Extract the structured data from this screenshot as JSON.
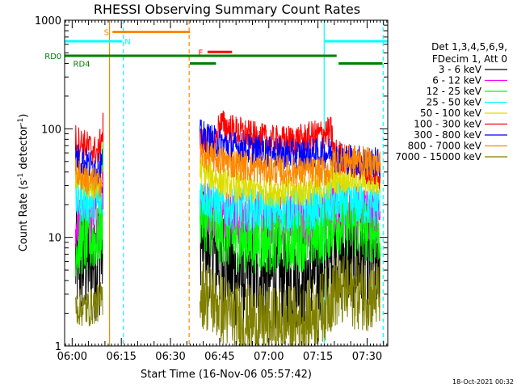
{
  "chart_data": {
    "type": "line",
    "title": "RHESSI Observing Summary Count Rates",
    "xlabel": "Start Time (16-Nov-06 05:57:42)",
    "ylabel_main": "Count Rate (s",
    "ylabel_sup1": "-1",
    "ylabel_mid": " detector",
    "ylabel_sup2": "-1",
    "ylabel_end": ")",
    "y_scale": "log",
    "ylim": [
      1,
      1000
    ],
    "xlim_minutes": [
      -2.3,
      96.3
    ],
    "x_unit": "minutes after 06:00",
    "x_ticks": [
      {
        "m": 0,
        "label": "06:00"
      },
      {
        "m": 15,
        "label": "06:15"
      },
      {
        "m": 30,
        "label": "06:30"
      },
      {
        "m": 45,
        "label": "06:45"
      },
      {
        "m": 60,
        "label": "07:00"
      },
      {
        "m": 75,
        "label": "07:15"
      },
      {
        "m": 90,
        "label": "07:30"
      }
    ],
    "y_ticks": [
      {
        "v": 1,
        "label": "1"
      },
      {
        "v": 10,
        "label": "10"
      },
      {
        "v": 100,
        "label": "100"
      },
      {
        "v": 1000,
        "label": "1000"
      }
    ],
    "legend_header": [
      "Det 1,3,4,5,6,9,",
      "FDecim 1, Att 0"
    ],
    "legend_placement": "right",
    "series": [
      {
        "name": "3 - 6 keV",
        "color": "#000000",
        "seg1": [
          [
            1,
            6,
            3.4
          ],
          [
            5,
            6.5,
            3.8
          ],
          [
            8,
            7,
            4.2
          ],
          [
            9.3,
            9,
            4.2
          ]
        ],
        "seg2": [
          [
            39,
            10,
            2.8
          ],
          [
            45,
            6.5,
            3.2
          ],
          [
            50,
            4.6,
            3.2
          ],
          [
            60,
            4.3,
            3
          ],
          [
            70,
            4.3,
            3
          ],
          [
            75,
            4.8,
            3
          ],
          [
            78,
            5.8,
            3
          ],
          [
            80,
            7.5,
            3
          ],
          [
            84,
            7,
            3.2
          ],
          [
            90,
            6.5,
            3.2
          ],
          [
            94,
            6.2,
            3.2
          ]
        ]
      },
      {
        "name": "6 - 12 keV",
        "color": "#ff00ff",
        "seg1": [
          [
            1,
            13,
            1.8
          ],
          [
            5,
            14,
            1.8
          ],
          [
            8,
            15,
            1.8
          ],
          [
            9.3,
            17,
            1.8
          ]
        ],
        "seg2": [
          [
            39,
            21,
            1.8
          ],
          [
            45,
            16.5,
            1.8
          ],
          [
            50,
            15,
            1.8
          ],
          [
            60,
            14.5,
            1.8
          ],
          [
            70,
            14.5,
            1.8
          ],
          [
            75,
            15,
            1.8
          ],
          [
            78,
            16,
            1.8
          ],
          [
            80,
            18,
            1.8
          ],
          [
            86,
            17,
            1.8
          ],
          [
            94,
            16,
            1.8
          ]
        ]
      },
      {
        "name": "12 - 25 keV",
        "color": "#00ff00",
        "seg1": [
          [
            1,
            8.5,
            2
          ],
          [
            5,
            9,
            2
          ],
          [
            8,
            10,
            2
          ],
          [
            9.3,
            13,
            2
          ]
        ],
        "seg2": [
          [
            39,
            16,
            2
          ],
          [
            45,
            11,
            2
          ],
          [
            50,
            9.5,
            2
          ],
          [
            60,
            9,
            2
          ],
          [
            70,
            9.5,
            2
          ],
          [
            75,
            10.5,
            2
          ],
          [
            78,
            12,
            2
          ],
          [
            80,
            14,
            2
          ],
          [
            86,
            12.5,
            2
          ],
          [
            94,
            11,
            2
          ]
        ]
      },
      {
        "name": "25 - 50 keV",
        "color": "#00ffff",
        "seg1": [
          [
            1,
            22,
            1.6
          ],
          [
            5,
            21,
            1.6
          ],
          [
            8,
            21,
            1.6
          ],
          [
            9.3,
            23,
            1.6
          ]
        ],
        "seg2": [
          [
            39,
            25,
            1.6
          ],
          [
            45,
            19.5,
            1.6
          ],
          [
            50,
            18.5,
            1.6
          ],
          [
            60,
            18,
            1.6
          ],
          [
            70,
            18,
            1.6
          ],
          [
            75,
            18.5,
            1.6
          ],
          [
            78,
            19.5,
            1.6
          ],
          [
            80,
            21,
            1.6
          ],
          [
            86,
            20.5,
            1.6
          ],
          [
            94,
            19.5,
            1.6
          ]
        ]
      },
      {
        "name": "50 - 100 keV",
        "color": "#dddd00",
        "seg1": [
          [
            1,
            38,
            1.4
          ],
          [
            5,
            30,
            1.4
          ],
          [
            8,
            29,
            1.4
          ],
          [
            9.3,
            31,
            1.4
          ]
        ],
        "seg2": [
          [
            39,
            43,
            1.4
          ],
          [
            45,
            33,
            1.4
          ],
          [
            50,
            29,
            1.4
          ],
          [
            60,
            27,
            1.4
          ],
          [
            70,
            26.5,
            1.4
          ],
          [
            75,
            27.5,
            1.4
          ],
          [
            78,
            30,
            1.4
          ],
          [
            80,
            35,
            1.4
          ],
          [
            86,
            35,
            1.4
          ],
          [
            94,
            32,
            1.4
          ]
        ]
      },
      {
        "name": "100 - 300 keV",
        "color": "#ff0000",
        "seg1": [
          [
            1,
            80,
            1.4
          ],
          [
            5,
            68,
            1.4
          ],
          [
            8,
            60,
            1.4
          ],
          [
            9.3,
            95,
            1.4
          ]
        ],
        "seg2": [
          [
            39,
            78,
            1.4
          ],
          [
            43,
            64,
            1.4
          ],
          [
            45,
            112,
            1.4
          ],
          [
            50,
            95,
            1.4
          ],
          [
            55,
            85,
            1.4
          ],
          [
            60,
            78,
            1.4
          ],
          [
            65,
            77,
            1.4
          ],
          [
            70,
            80,
            1.4
          ],
          [
            75,
            88,
            1.4
          ],
          [
            79,
            94,
            1.4
          ],
          [
            80,
            60,
            1.4
          ],
          [
            86,
            48,
            1.4
          ],
          [
            90,
            43,
            1.4
          ],
          [
            94,
            38,
            1.4
          ]
        ]
      },
      {
        "name": "300 - 800 keV",
        "color": "#0000ff",
        "seg1": [
          [
            1,
            55,
            1.4
          ],
          [
            5,
            47,
            1.4
          ],
          [
            8,
            43,
            1.4
          ],
          [
            9.3,
            50,
            1.4
          ]
        ],
        "seg2": [
          [
            39,
            88,
            1.4
          ],
          [
            45,
            74,
            1.4
          ],
          [
            50,
            68,
            1.4
          ],
          [
            60,
            61,
            1.4
          ],
          [
            70,
            58,
            1.4
          ],
          [
            75,
            59,
            1.4
          ],
          [
            79,
            60,
            1.4
          ],
          [
            80,
            55,
            1.4
          ],
          [
            86,
            52,
            1.4
          ],
          [
            94,
            48,
            1.4
          ]
        ]
      },
      {
        "name": "800 - 7000 keV",
        "color": "#ff8800",
        "seg1": [
          [
            1,
            40,
            1.4
          ],
          [
            5,
            33,
            1.4
          ],
          [
            8,
            31,
            1.4
          ],
          [
            9.3,
            34,
            1.4
          ]
        ],
        "seg2": [
          [
            39,
            58,
            1.4
          ],
          [
            45,
            52,
            1.4
          ],
          [
            50,
            47,
            1.4
          ],
          [
            60,
            42,
            1.4
          ],
          [
            70,
            40,
            1.4
          ],
          [
            75,
            40,
            1.4
          ],
          [
            79,
            41,
            1.4
          ],
          [
            80,
            52,
            1.4
          ],
          [
            86,
            52,
            1.4
          ],
          [
            94,
            46,
            1.4
          ]
        ]
      },
      {
        "name": "7000 - 15000 keV",
        "color": "#808000",
        "seg1": [
          [
            1,
            2.3,
            1.5
          ],
          [
            5,
            2.2,
            1.5
          ],
          [
            8,
            2.5,
            1.5
          ],
          [
            9.3,
            2.8,
            1.5
          ]
        ],
        "seg2": [
          [
            39,
            3.3,
            2.2
          ],
          [
            45,
            2.3,
            2.2
          ],
          [
            50,
            1.8,
            2.2
          ],
          [
            60,
            1.6,
            2.2
          ],
          [
            70,
            1.7,
            2.2
          ],
          [
            75,
            2.1,
            2.2
          ],
          [
            78,
            2.6,
            2.2
          ],
          [
            80,
            3.2,
            2.2
          ],
          [
            86,
            3.1,
            2.2
          ],
          [
            94,
            2.9,
            2.2
          ]
        ]
      }
    ],
    "flags": [
      {
        "label": "S",
        "color": "#ff8800",
        "y": 780,
        "segments": [
          [
            12.3,
            35.9
          ]
        ],
        "label_at": 9.7
      },
      {
        "label": "N",
        "color": "#00ffff",
        "y": 640,
        "segments": [
          [
            -2.3,
            15.3
          ],
          [
            77,
            96.3
          ]
        ],
        "label_at": 16
      },
      {
        "label": "F",
        "color": "#ff0000",
        "y": 510,
        "segments": [
          [
            41.3,
            48.8
          ]
        ],
        "label_at": 38.5
      },
      {
        "label": "RD0",
        "color": "#008000",
        "y": 470,
        "segments": [
          [
            -2.3,
            35.9
          ],
          [
            35.9,
            80.7
          ]
        ],
        "label_at": -8.4
      },
      {
        "label": "RD4",
        "color": "#008000",
        "y": 400,
        "segments": [
          [
            35.9,
            43.9
          ],
          [
            81.3,
            94.7
          ]
        ],
        "label_at": 0.3
      }
    ],
    "vlines": [
      {
        "m": 11.4,
        "color": "#ff8800",
        "style": "solid"
      },
      {
        "m": 15.6,
        "color": "#00ffff",
        "style": "dashed"
      },
      {
        "m": 35.7,
        "color": "#ff8800",
        "style": "dashed"
      },
      {
        "m": 76.9,
        "color": "#00ffff",
        "style": "solid"
      },
      {
        "m": 94.9,
        "color": "#00ffff",
        "style": "dashed"
      }
    ],
    "footer_date": "18-Oct-2021 00:32"
  }
}
